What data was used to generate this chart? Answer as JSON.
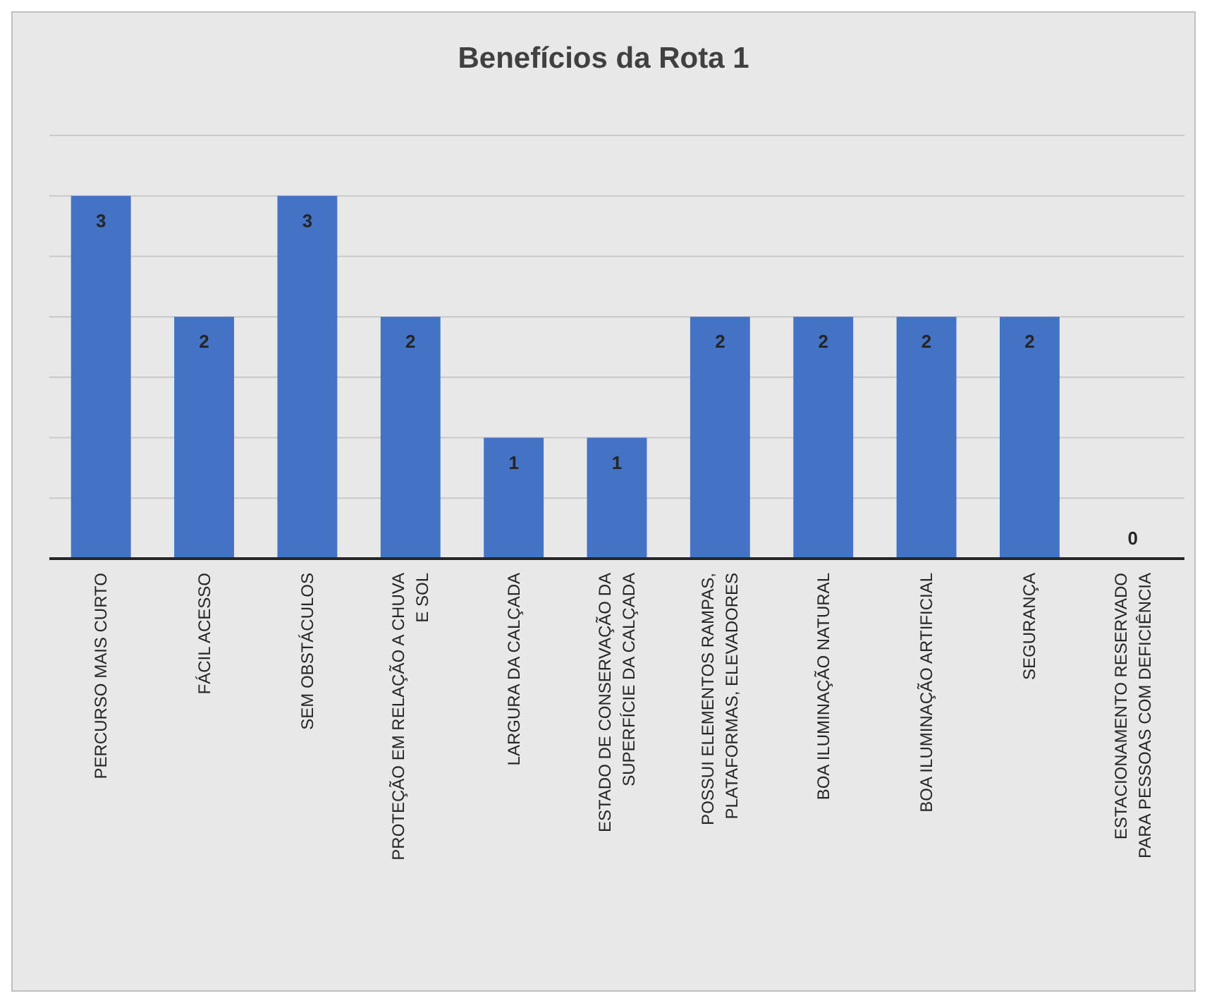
{
  "chart_data": {
    "type": "bar",
    "title": "Benefícios da Rota 1",
    "categories": [
      "PERCURSO MAIS CURTO",
      "FÁCIL ACESSO",
      "SEM OBSTÁCULOS",
      "PROTEÇÃO EM RELAÇÃO A CHUVA E SOL",
      "LARGURA DA CALÇADA",
      "ESTADO DE CONSERVAÇÃO DA SUPERFÍCIE DA CALÇADA",
      "POSSUI ELEMENTOS RAMPAS, PLATAFORMAS, ELEVADORES",
      "BOA ILUMINAÇÃO NATURAL",
      "BOA ILUMINAÇÃO ARTIFICIAL",
      "SEGURANÇA",
      "ESTACIONAMENTO RESERVADO PARA PESSOAS COM DEFICIÊNCIA"
    ],
    "values": [
      3,
      2,
      3,
      2,
      1,
      1,
      2,
      2,
      2,
      2,
      0
    ],
    "color": "#4472c4",
    "ylim": [
      0,
      3.5
    ],
    "yticks": [
      {
        "value": 0,
        "label": null
      },
      {
        "value": 0.5,
        "label": null
      },
      {
        "value": 1,
        "label": null
      },
      {
        "value": 1.5,
        "label": null
      },
      {
        "value": 2,
        "label": null
      },
      {
        "value": 2.5,
        "label": null
      },
      {
        "value": 3,
        "label": null
      },
      {
        "value": 3.5,
        "label": null
      }
    ],
    "grid": "y",
    "data_labels": true,
    "tick_labels": "x"
  }
}
